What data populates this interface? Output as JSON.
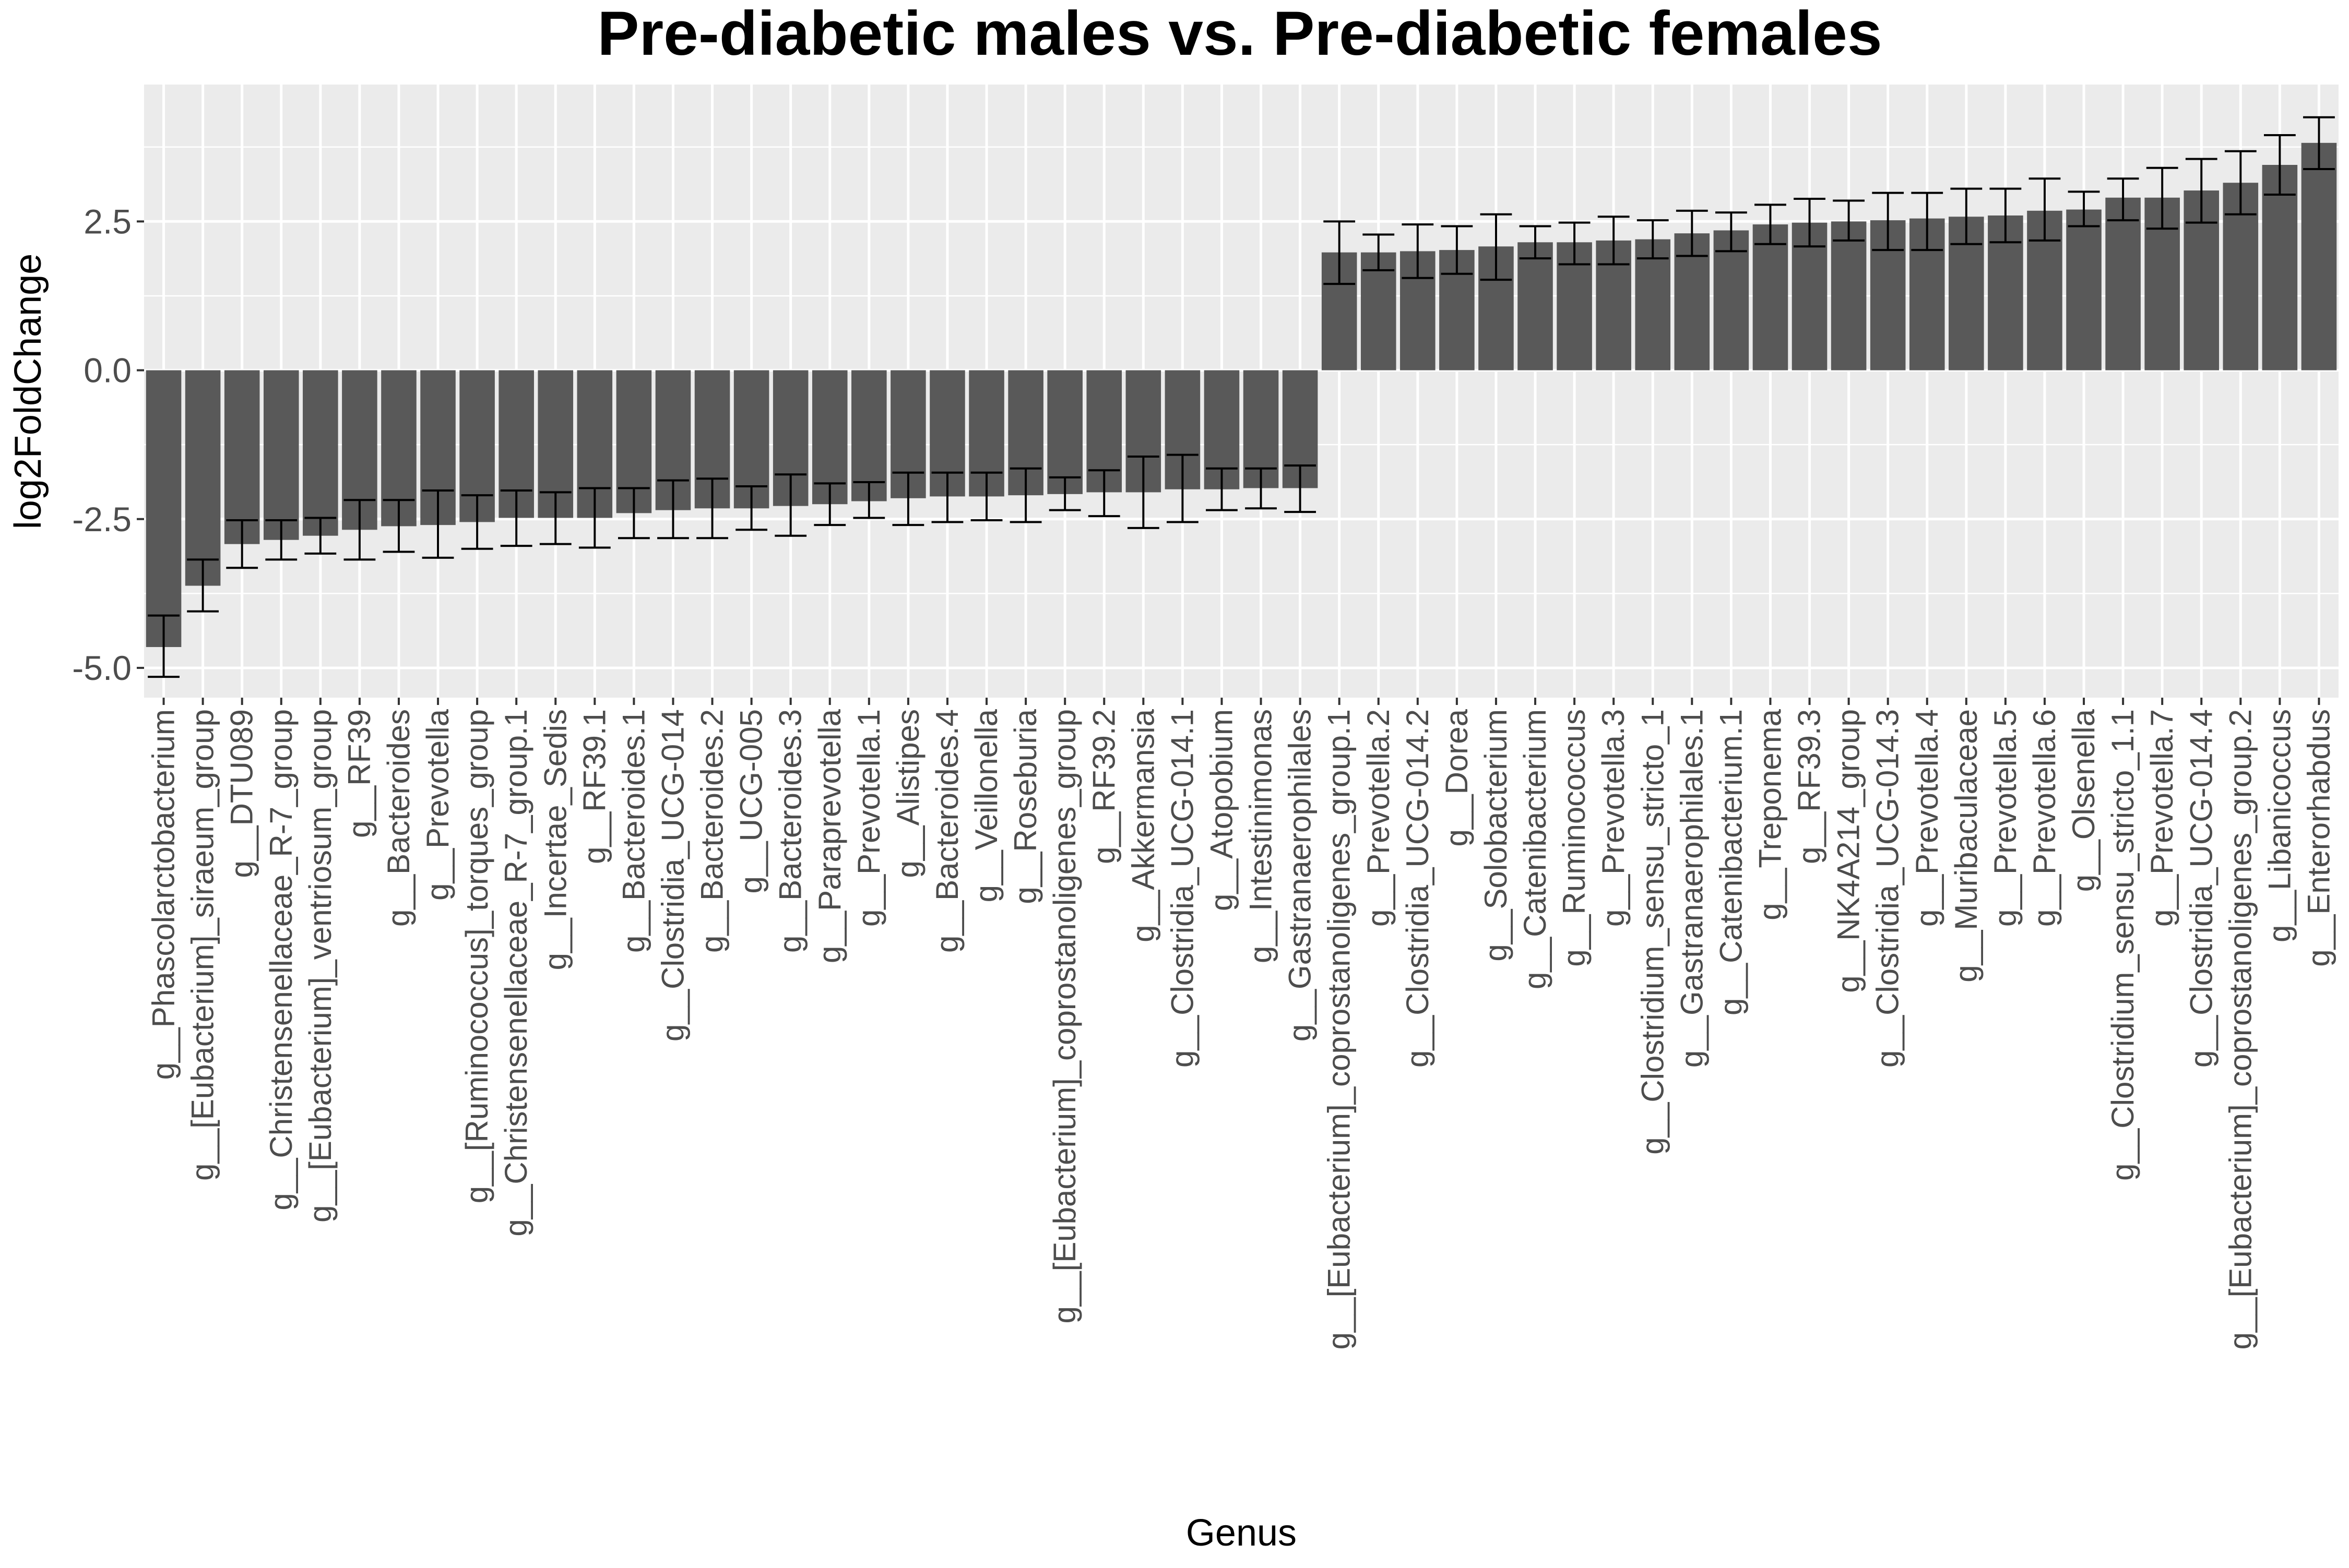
{
  "chart_data": {
    "type": "bar",
    "title": "Pre-diabetic males vs. Pre-diabetic females",
    "xlabel": "Genus",
    "ylabel": "log2FoldChange",
    "ylim": [
      -5.5,
      4.8
    ],
    "yticks": [
      -5.0,
      -2.5,
      0.0,
      2.5
    ],
    "ytick_labels": [
      "-5.0",
      "-2.5",
      "0.0",
      "2.5"
    ],
    "grid": true,
    "error_bars": true,
    "bar_color": "#595959",
    "panel_color": "#ebebeb",
    "categories": [
      "g__Phascolarctobacterium",
      "g__[Eubacterium]_siraeum_group",
      "g__DTU089",
      "g__Christensenellaceae_R-7_group",
      "g__[Eubacterium]_ventriosum_group",
      "g__RF39",
      "g__Bacteroides",
      "g__Prevotella",
      "g__[Ruminococcus]_torques_group",
      "g__Christensenellaceae_R-7_group.1",
      "g__Incertae_Sedis",
      "g__RF39.1",
      "g__Bacteroides.1",
      "g__Clostridia_UCG-014",
      "g__Bacteroides.2",
      "g__UCG-005",
      "g__Bacteroides.3",
      "g__Paraprevotella",
      "g__Prevotella.1",
      "g__Alistipes",
      "g__Bacteroides.4",
      "g__Veillonella",
      "g__Roseburia",
      "g__[Eubacterium]_coprostanoligenes_group",
      "g__RF39.2",
      "g__Akkermansia",
      "g__Clostridia_UCG-014.1",
      "g__Atopobium",
      "g__Intestinimonas",
      "g__Gastranaerophilales",
      "g__[Eubacterium]_coprostanoligenes_group.1",
      "g__Prevotella.2",
      "g__Clostridia_UCG-014.2",
      "g__Dorea",
      "g__Solobacterium",
      "g__Catenibacterium",
      "g__Ruminococcus",
      "g__Prevotella.3",
      "g__Clostridium_sensu_stricto_1",
      "g__Gastranaerophilales.1",
      "g__Catenibacterium.1",
      "g__Treponema",
      "g__RF39.3",
      "g__NK4A214_group",
      "g__Clostridia_UCG-014.3",
      "g__Prevotella.4",
      "g__Muribaculaceae",
      "g__Prevotella.5",
      "g__Prevotella.6",
      "g__Olsenella",
      "g__Clostridium_sensu_stricto_1.1",
      "g__Prevotella.7",
      "g__Clostridia_UCG-014.4",
      "g__[Eubacterium]_coprostanoligenes_group.2",
      "g__Libanicoccus",
      "g__Enterorhabdus"
    ],
    "values": [
      -4.65,
      -3.62,
      -2.92,
      -2.85,
      -2.78,
      -2.68,
      -2.62,
      -2.6,
      -2.55,
      -2.48,
      -2.48,
      -2.48,
      -2.4,
      -2.35,
      -2.32,
      -2.32,
      -2.28,
      -2.25,
      -2.2,
      -2.15,
      -2.12,
      -2.12,
      -2.1,
      -2.08,
      -2.05,
      -2.05,
      -2.0,
      -2.0,
      -1.98,
      -1.98,
      1.98,
      1.98,
      2.0,
      2.02,
      2.08,
      2.15,
      2.15,
      2.18,
      2.2,
      2.3,
      2.35,
      2.45,
      2.48,
      2.5,
      2.52,
      2.55,
      2.58,
      2.6,
      2.68,
      2.7,
      2.9,
      2.9,
      3.02,
      3.15,
      3.45,
      3.82
    ],
    "error_low": [
      -5.15,
      -4.05,
      -3.32,
      -3.18,
      -3.08,
      -3.18,
      -3.05,
      -3.15,
      -3.0,
      -2.95,
      -2.92,
      -2.98,
      -2.82,
      -2.82,
      -2.82,
      -2.68,
      -2.78,
      -2.6,
      -2.48,
      -2.6,
      -2.55,
      -2.52,
      -2.55,
      -2.35,
      -2.45,
      -2.65,
      -2.55,
      -2.35,
      -2.32,
      -2.38,
      1.45,
      1.68,
      1.55,
      1.62,
      1.52,
      1.88,
      1.78,
      1.78,
      1.88,
      1.92,
      2.0,
      2.12,
      2.08,
      2.18,
      2.02,
      2.02,
      2.12,
      2.15,
      2.18,
      2.42,
      2.52,
      2.38,
      2.48,
      2.62,
      2.95,
      3.38
    ],
    "error_high": [
      -4.12,
      -3.18,
      -2.52,
      -2.52,
      -2.48,
      -2.18,
      -2.18,
      -2.02,
      -2.1,
      -2.02,
      -2.05,
      -1.98,
      -1.98,
      -1.85,
      -1.82,
      -1.95,
      -1.75,
      -1.9,
      -1.88,
      -1.72,
      -1.72,
      -1.72,
      -1.65,
      -1.8,
      -1.68,
      -1.45,
      -1.42,
      -1.65,
      -1.65,
      -1.6,
      2.5,
      2.28,
      2.45,
      2.42,
      2.62,
      2.42,
      2.48,
      2.58,
      2.52,
      2.68,
      2.65,
      2.78,
      2.88,
      2.85,
      2.98,
      2.98,
      3.05,
      3.05,
      3.22,
      3.0,
      3.22,
      3.4,
      3.55,
      3.68,
      3.95,
      4.25
    ]
  }
}
